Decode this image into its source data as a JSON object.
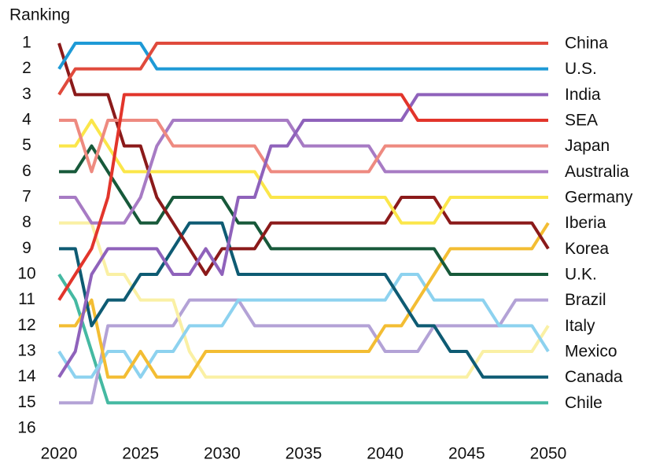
{
  "chart_data": {
    "type": "bump",
    "y_axis_label": "Ranking",
    "y_reversed": true,
    "xlim": [
      2020,
      2050
    ],
    "xticks": [
      2020,
      2025,
      2030,
      2035,
      2040,
      2045,
      2050
    ],
    "ylim": [
      1,
      16
    ],
    "yticks": [
      1,
      2,
      3,
      4,
      5,
      6,
      7,
      8,
      9,
      10,
      11,
      12,
      13,
      14,
      15,
      16
    ],
    "x": [
      2020,
      2021,
      2022,
      2023,
      2024,
      2025,
      2026,
      2027,
      2028,
      2029,
      2030,
      2031,
      2032,
      2033,
      2034,
      2035,
      2036,
      2037,
      2038,
      2039,
      2040,
      2041,
      2042,
      2043,
      2044,
      2045,
      2046,
      2047,
      2048,
      2049,
      2050
    ],
    "series": [
      {
        "name": "Chile",
        "color": "#45b9a2",
        "values": [
          10,
          11,
          13,
          15,
          15,
          15,
          15,
          15,
          15,
          15,
          15,
          15,
          15,
          15,
          15,
          15,
          15,
          15,
          15,
          15,
          15,
          15,
          15,
          15,
          15,
          15,
          15,
          15,
          15,
          15,
          15
        ]
      },
      {
        "name": "Brazil",
        "color": "#b3a2d6",
        "values": [
          15,
          15,
          15,
          12,
          12,
          12,
          12,
          12,
          11,
          11,
          11,
          11,
          12,
          12,
          12,
          12,
          12,
          12,
          12,
          12,
          13,
          13,
          13,
          12,
          12,
          12,
          12,
          12,
          11,
          11,
          11
        ]
      },
      {
        "name": "Italy",
        "color": "#faf0a4",
        "values": [
          8,
          8,
          8,
          10,
          10,
          11,
          11,
          11,
          13,
          14,
          14,
          14,
          14,
          14,
          14,
          14,
          14,
          14,
          14,
          14,
          14,
          14,
          14,
          14,
          14,
          14,
          13,
          13,
          13,
          13,
          12
        ]
      },
      {
        "name": "Mexico",
        "color": "#8dd2ef",
        "values": [
          13,
          14,
          14,
          13,
          13,
          14,
          13,
          13,
          12,
          12,
          12,
          11,
          11,
          11,
          11,
          11,
          11,
          11,
          11,
          11,
          11,
          10,
          10,
          11,
          11,
          11,
          11,
          12,
          12,
          12,
          13
        ]
      },
      {
        "name": "Iberia",
        "color": "#f3bd33",
        "values": [
          12,
          12,
          11,
          14,
          14,
          13,
          14,
          14,
          14,
          13,
          13,
          13,
          13,
          13,
          13,
          13,
          13,
          13,
          13,
          13,
          12,
          12,
          11,
          10,
          9,
          9,
          9,
          9,
          9,
          9,
          8
        ]
      },
      {
        "name": "Canada",
        "color": "#0e5b73",
        "values": [
          9,
          9,
          12,
          11,
          11,
          10,
          10,
          9,
          8,
          8,
          8,
          10,
          10,
          10,
          10,
          10,
          10,
          10,
          10,
          10,
          10,
          11,
          12,
          12,
          13,
          13,
          14,
          14,
          14,
          14,
          14
        ]
      },
      {
        "name": "U.K.",
        "color": "#17593a",
        "values": [
          6,
          6,
          5,
          6,
          7,
          8,
          8,
          7,
          7,
          7,
          7,
          8,
          8,
          9,
          9,
          9,
          9,
          9,
          9,
          9,
          9,
          9,
          9,
          9,
          10,
          10,
          10,
          10,
          10,
          10,
          10
        ]
      },
      {
        "name": "Korea",
        "color": "#8b1a1a",
        "values": [
          1,
          3,
          3,
          3,
          5,
          5,
          7,
          8,
          9,
          10,
          9,
          9,
          9,
          8,
          8,
          8,
          8,
          8,
          8,
          8,
          8,
          7,
          7,
          7,
          8,
          8,
          8,
          8,
          8,
          8,
          9
        ]
      },
      {
        "name": "Germany",
        "color": "#fbe64a",
        "values": [
          5,
          5,
          4,
          5,
          6,
          6,
          6,
          6,
          6,
          6,
          6,
          6,
          6,
          7,
          7,
          7,
          7,
          7,
          7,
          7,
          7,
          8,
          8,
          8,
          7,
          7,
          7,
          7,
          7,
          7,
          7
        ]
      },
      {
        "name": "Australia",
        "color": "#a77bc4",
        "values": [
          7,
          7,
          8,
          8,
          8,
          7,
          5,
          4,
          4,
          4,
          4,
          4,
          4,
          4,
          4,
          5,
          5,
          5,
          5,
          5,
          6,
          6,
          6,
          6,
          6,
          6,
          6,
          6,
          6,
          6,
          6
        ]
      },
      {
        "name": "Japan",
        "color": "#ee8a80",
        "values": [
          4,
          4,
          6,
          4,
          4,
          4,
          4,
          5,
          5,
          5,
          5,
          5,
          5,
          6,
          6,
          6,
          6,
          6,
          6,
          6,
          5,
          5,
          5,
          5,
          5,
          5,
          5,
          5,
          5,
          5,
          5
        ]
      },
      {
        "name": "India",
        "color": "#8f62bb",
        "values": [
          14,
          13,
          10,
          9,
          9,
          9,
          9,
          10,
          10,
          9,
          10,
          7,
          7,
          5,
          5,
          4,
          4,
          4,
          4,
          4,
          4,
          4,
          3,
          3,
          3,
          3,
          3,
          3,
          3,
          3,
          3
        ]
      },
      {
        "name": "SEA",
        "color": "#e2352b",
        "values": [
          11,
          10,
          9,
          7,
          3,
          3,
          3,
          3,
          3,
          3,
          3,
          3,
          3,
          3,
          3,
          3,
          3,
          3,
          3,
          3,
          3,
          3,
          4,
          4,
          4,
          4,
          4,
          4,
          4,
          4,
          4
        ]
      },
      {
        "name": "U.S.",
        "color": "#1e9ad6",
        "values": [
          2,
          1,
          1,
          1,
          1,
          1,
          2,
          2,
          2,
          2,
          2,
          2,
          2,
          2,
          2,
          2,
          2,
          2,
          2,
          2,
          2,
          2,
          2,
          2,
          2,
          2,
          2,
          2,
          2,
          2,
          2
        ]
      },
      {
        "name": "China",
        "color": "#e04a3c",
        "values": [
          3,
          2,
          2,
          2,
          2,
          2,
          1,
          1,
          1,
          1,
          1,
          1,
          1,
          1,
          1,
          1,
          1,
          1,
          1,
          1,
          1,
          1,
          1,
          1,
          1,
          1,
          1,
          1,
          1,
          1,
          1
        ]
      }
    ]
  }
}
